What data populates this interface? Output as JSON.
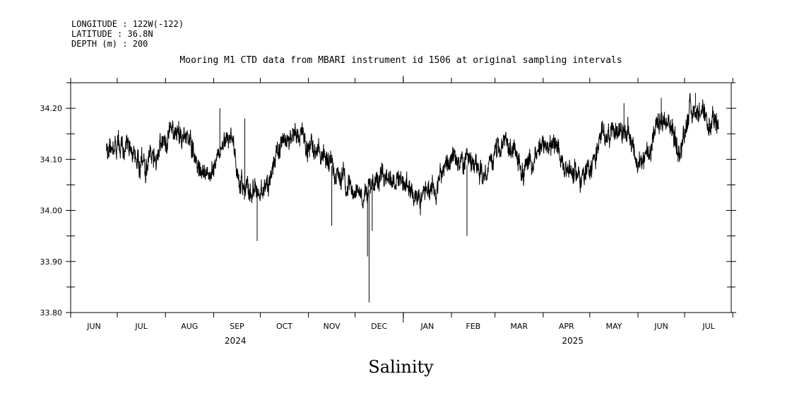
{
  "header": {
    "lines": [
      "LONGITUDE : 122W(-122)",
      "LATITUDE : 36.8N",
      "DEPTH (m) : 200"
    ]
  },
  "chart_data": {
    "type": "line",
    "title": "Mooring M1 CTD data from MBARI instrument id 1506 at original sampling intervals",
    "xlabel": "Salinity",
    "ylabel": "",
    "ylim": [
      33.8,
      34.25
    ],
    "y_ticks": [
      "33.80",
      "33.90",
      "34.00",
      "34.10",
      "34.20"
    ],
    "x_range": [
      "2024-06-01",
      "2025-07-31"
    ],
    "month_labels": [
      "JUN",
      "JUL",
      "AUG",
      "SEP",
      "OCT",
      "NOV",
      "DEC",
      "JAN",
      "FEB",
      "MAR",
      "APR",
      "MAY",
      "JUN",
      "JUL"
    ],
    "year_labels": [
      "2024",
      "2025"
    ],
    "grid": false,
    "series": [
      {
        "color": "#000000",
        "anchors": [
          [
            "2024-06-24",
            34.12
          ],
          [
            "2024-07-01",
            34.13
          ],
          [
            "2024-07-10",
            34.11
          ],
          [
            "2024-07-20",
            34.09
          ],
          [
            "2024-07-28",
            34.12
          ],
          [
            "2024-08-05",
            34.16
          ],
          [
            "2024-08-15",
            34.15
          ],
          [
            "2024-08-22",
            34.1
          ],
          [
            "2024-08-29",
            34.06
          ],
          [
            "2024-09-05",
            34.12
          ],
          [
            "2024-09-12",
            34.15
          ],
          [
            "2024-09-17",
            34.05
          ],
          [
            "2024-09-25",
            34.04
          ],
          [
            "2024-10-02",
            34.03
          ],
          [
            "2024-10-12",
            34.1
          ],
          [
            "2024-10-22",
            34.15
          ],
          [
            "2024-11-01",
            34.13
          ],
          [
            "2024-11-10",
            34.11
          ],
          [
            "2024-11-18",
            34.08
          ],
          [
            "2024-11-28",
            34.05
          ],
          [
            "2024-12-08",
            34.03
          ],
          [
            "2024-12-18",
            34.08
          ],
          [
            "2025-01-01",
            34.05
          ],
          [
            "2025-01-12",
            34.03
          ],
          [
            "2025-01-22",
            34.05
          ],
          [
            "2025-02-01",
            34.1
          ],
          [
            "2025-02-10",
            34.09
          ],
          [
            "2025-02-22",
            34.07
          ],
          [
            "2025-03-01",
            34.11
          ],
          [
            "2025-03-08",
            34.14
          ],
          [
            "2025-03-18",
            34.08
          ],
          [
            "2025-03-28",
            34.1
          ],
          [
            "2025-04-04",
            34.14
          ],
          [
            "2025-04-12",
            34.1
          ],
          [
            "2025-04-22",
            34.07
          ],
          [
            "2025-04-30",
            34.07
          ],
          [
            "2025-05-08",
            34.14
          ],
          [
            "2025-05-15",
            34.16
          ],
          [
            "2025-05-22",
            34.16
          ],
          [
            "2025-05-28",
            34.14
          ],
          [
            "2025-06-02",
            34.08
          ],
          [
            "2025-06-09",
            34.13
          ],
          [
            "2025-06-16",
            34.17
          ],
          [
            "2025-06-23",
            34.16
          ],
          [
            "2025-06-28",
            34.11
          ],
          [
            "2025-07-04",
            34.2
          ],
          [
            "2025-07-10",
            34.2
          ],
          [
            "2025-07-15",
            34.16
          ],
          [
            "2025-07-23",
            34.17
          ]
        ],
        "spikes": [
          [
            "2024-09-05",
            34.2
          ],
          [
            "2024-09-21",
            34.18
          ],
          [
            "2024-09-29",
            33.94
          ],
          [
            "2024-11-16",
            33.97
          ],
          [
            "2024-12-09",
            33.91
          ],
          [
            "2024-12-10",
            33.82
          ],
          [
            "2024-12-12",
            33.96
          ],
          [
            "2025-02-11",
            33.95
          ],
          [
            "2025-05-23",
            34.21
          ],
          [
            "2025-06-16",
            34.22
          ],
          [
            "2025-07-08",
            34.23
          ]
        ]
      }
    ]
  }
}
